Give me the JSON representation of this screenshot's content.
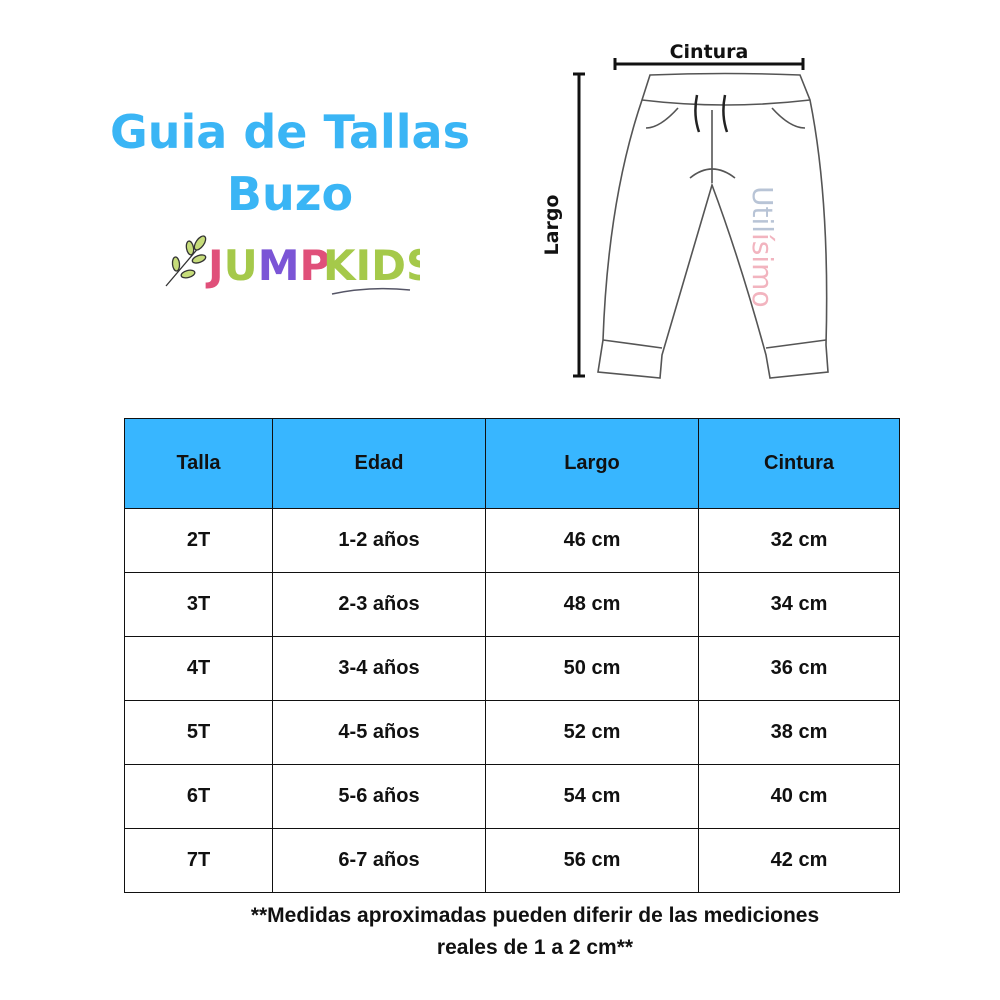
{
  "title_line1": "Guia de Tallas",
  "title_line2": "Buzo",
  "logo": {
    "word1": "JUMP",
    "word2": "KIDS",
    "colors": {
      "J": "#e0507a",
      "U": "#a5c94a",
      "M": "#7b55d6",
      "P": "#e0507a",
      "KIDS": "#a5c94a"
    }
  },
  "diagram": {
    "width_label": "Cintura",
    "length_label": "Largo",
    "brand_part1": "Util",
    "brand_part2": "ísimo"
  },
  "table": {
    "headers": [
      "Talla",
      "Edad",
      "Largo",
      "Cintura"
    ],
    "rows": [
      [
        "2T",
        "1-2 años",
        "46 cm",
        "32 cm"
      ],
      [
        "3T",
        "2-3 años",
        "48 cm",
        "34 cm"
      ],
      [
        "4T",
        "3-4 años",
        "50 cm",
        "36 cm"
      ],
      [
        "5T",
        "4-5 años",
        "52 cm",
        "38 cm"
      ],
      [
        "6T",
        "5-6 años",
        "54 cm",
        "40 cm"
      ],
      [
        "7T",
        "6-7 años",
        "56 cm",
        "42 cm"
      ]
    ],
    "header_color": "#38b6ff"
  },
  "note_line1": "**Medidas aproximadas pueden diferir de las mediciones",
  "note_line2": "reales de 1 a 2 cm**"
}
